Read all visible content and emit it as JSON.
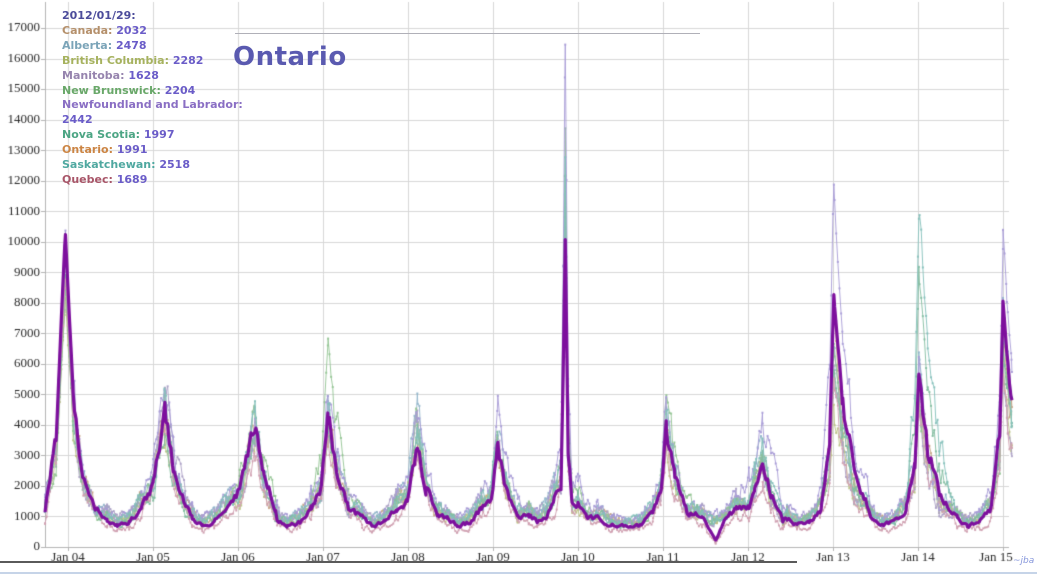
{
  "watermark": {
    "text": "~jba"
  },
  "chart_data": {
    "type": "line",
    "title": "Ontario",
    "title_color": "#5a5ab0",
    "xlabel": "",
    "ylabel": "",
    "grid": true,
    "legend_position": "top-left",
    "xlim": [
      2003.73,
      2015.34
    ],
    "x_data_end": 2015.105,
    "ylim": [
      0,
      17000
    ],
    "y_ticks": [
      0,
      1000,
      2000,
      3000,
      4000,
      5000,
      6000,
      7000,
      8000,
      9000,
      10000,
      11000,
      12000,
      13000,
      14000,
      15000,
      16000,
      17000
    ],
    "x_ticks": [
      {
        "label": "Jan 04",
        "year": 2004
      },
      {
        "label": "Jan 05",
        "year": 2005
      },
      {
        "label": "Jan 06",
        "year": 2006
      },
      {
        "label": "Jan 07",
        "year": 2007
      },
      {
        "label": "Jan 08",
        "year": 2008
      },
      {
        "label": "Jan 09",
        "year": 2009
      },
      {
        "label": "Jan 10",
        "year": 2010
      },
      {
        "label": "Jan 11",
        "year": 2011
      },
      {
        "label": "Jan 12",
        "year": 2012
      },
      {
        "label": "Jan 13",
        "year": 2013
      },
      {
        "label": "Jan 14",
        "year": 2014
      },
      {
        "label": "Jan 15",
        "year": 2015
      }
    ],
    "legend": {
      "date": "2012/01/29:",
      "date_color": "#4c4c9b",
      "value_color": "#6a5cc8"
    },
    "peak_offsets": {
      "2005": 0.14,
      "2006": 0.2,
      "2007": 0.06,
      "2008": 0.11,
      "2009": 0.05,
      "2011": 0.04,
      "2012": 0.17,
      "2013": 0.01,
      "2014": 0.01,
      "2015": 0.0
    },
    "h1n1_spike_x": 2009.85,
    "series": [
      {
        "name": "Canada",
        "seed": 1,
        "legend_color": "#b5906b",
        "line_color": "#c6a585",
        "width": 1,
        "trough": 850,
        "h1n1_peak": 10800,
        "value_2012_01_29": 2032,
        "peaks": {
          "2004": 9800,
          "2005": 4600,
          "2006": 3600,
          "2007": 4200,
          "2008": 3500,
          "2009": 3600,
          "2011": 3800,
          "2012": 2800,
          "2013": 7200,
          "2014": 5500,
          "2015": 7200
        }
      },
      {
        "name": "Alberta",
        "seed": 2,
        "legend_color": "#7ba4b8",
        "line_color": "#92b6cb",
        "width": 1,
        "trough": 900,
        "h1n1_peak": 11000,
        "value_2012_01_29": 2478,
        "peaks": {
          "2004": 10000,
          "2005": 5000,
          "2006": 4000,
          "2007": 4700,
          "2008": 4400,
          "2009": 3800,
          "2011": 4200,
          "2012": 3300,
          "2013": 6500,
          "2014": 6000,
          "2015": 8500
        }
      },
      {
        "name": "British Columbia",
        "seed": 3,
        "legend_color": "#a6b25e",
        "line_color": "#bcc487",
        "width": 1,
        "trough": 800,
        "h1n1_peak": 9500,
        "value_2012_01_29": 2282,
        "peaks": {
          "2004": 8200,
          "2005": 4200,
          "2006": 3500,
          "2007": 3800,
          "2008": 3700,
          "2009": 3300,
          "2011": 3500,
          "2012": 2600,
          "2013": 5000,
          "2014": 4500,
          "2015": 6000
        }
      },
      {
        "name": "Manitoba",
        "seed": 4,
        "legend_color": "#9684ae",
        "line_color": "#aca1c5",
        "width": 1,
        "trough": 900,
        "h1n1_peak": 10500,
        "value_2012_01_29": 1628,
        "peaks": {
          "2004": 9000,
          "2005": 5400,
          "2006": 3700,
          "2007": 3900,
          "2008": 3600,
          "2009": 3400,
          "2011": 3700,
          "2012": 2600,
          "2013": 5500,
          "2014": 4000,
          "2015": 5500
        }
      },
      {
        "name": "New Brunswick",
        "seed": 5,
        "legend_color": "#69a869",
        "line_color": "#93c493",
        "width": 1,
        "trough": 800,
        "h1n1_peak": 13200,
        "value_2012_01_29": 2204,
        "peaks": {
          "2004": 8500,
          "2005": 4300,
          "2006": 4800,
          "2007": 6700,
          "2008": 4000,
          "2009": 3600,
          "2011": 5100,
          "2012": 3100,
          "2013": 6500,
          "2014": 5000,
          "2015": 7000
        }
      },
      {
        "name": "Newfoundland and Labrador",
        "seed": 6,
        "legend_color": "#8a6fc4",
        "line_color": "#a79bd6",
        "width": 1,
        "trough": 950,
        "h1n1_peak": 16300,
        "value_2012_01_29": 2442,
        "peaks": {
          "2004": 10300,
          "2005": 5200,
          "2006": 3900,
          "2007": 5000,
          "2008": 4500,
          "2009": 4700,
          "2011": 4600,
          "2012": 5000,
          "2013": 11700,
          "2014": 5000,
          "2015": 10500
        }
      },
      {
        "name": "Nova Scotia",
        "seed": 7,
        "legend_color": "#4ca584",
        "line_color": "#82bda0",
        "width": 1,
        "trough": 800,
        "h1n1_peak": 12500,
        "value_2012_01_29": 1997,
        "peaks": {
          "2004": 9200,
          "2005": 4000,
          "2006": 3600,
          "2007": 4400,
          "2008": 3800,
          "2009": 3500,
          "2011": 4000,
          "2012": 2900,
          "2013": 6000,
          "2014": 9000,
          "2015": 6500
        }
      },
      {
        "name": "Ontario",
        "seed": 8,
        "legend_color": "#cc8544",
        "line_color": "#7d0f9d",
        "width": 3.2,
        "trough": 700,
        "h1n1_peak": 10200,
        "value_2012_01_29": 1991,
        "dip_2011": 250,
        "peaks": {
          "2004": 10300,
          "2005": 4500,
          "2006": 4250,
          "2007": 4300,
          "2008": 3400,
          "2009": 3200,
          "2011": 4000,
          "2012": 2900,
          "2013": 8300,
          "2014": 5800,
          "2015": 8000
        }
      },
      {
        "name": "Saskatchewan",
        "seed": 9,
        "legend_color": "#4fa8a0",
        "line_color": "#84c0ba",
        "width": 1,
        "trough": 850,
        "h1n1_peak": 12000,
        "value_2012_01_29": 2518,
        "peaks": {
          "2004": 9500,
          "2005": 4800,
          "2006": 4100,
          "2007": 4500,
          "2008": 4200,
          "2009": 3700,
          "2011": 4300,
          "2012": 3300,
          "2013": 8000,
          "2014": 11500,
          "2015": 7500
        }
      },
      {
        "name": "Quebec",
        "seed": 10,
        "legend_color": "#a85568",
        "line_color": "#cfa0b0",
        "width": 1,
        "trough": 550,
        "h1n1_peak": 8800,
        "value_2012_01_29": 1689,
        "dip_2011": 100,
        "peaks": {
          "2004": 8800,
          "2005": 4300,
          "2006": 3000,
          "2007": 3600,
          "2008": 3300,
          "2009": 3000,
          "2011": 3200,
          "2012": 2100,
          "2013": 5200,
          "2014": 4500,
          "2015": 5500
        }
      }
    ]
  }
}
